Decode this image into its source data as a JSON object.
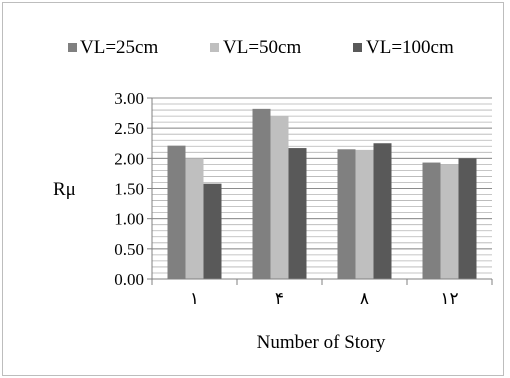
{
  "chart_data": {
    "type": "bar",
    "categories": [
      "١",
      "۴",
      "٨",
      "١٢"
    ],
    "series": [
      {
        "name": "VL=25cm",
        "color": "#808080",
        "values": [
          2.21,
          2.82,
          2.15,
          1.93
        ]
      },
      {
        "name": "VL=50cm",
        "color": "#bfbfbf",
        "values": [
          2.0,
          2.7,
          2.14,
          1.9
        ]
      },
      {
        "name": "VL=100cm",
        "color": "#595959",
        "values": [
          1.58,
          2.17,
          2.25,
          2.0
        ]
      }
    ],
    "xlabel": "Number of Story",
    "ylabel": "Rμ",
    "ylim": [
      0,
      3
    ],
    "yticks": [
      "0.00",
      "0.50",
      "1.00",
      "1.50",
      "2.00",
      "2.50",
      "3.00"
    ],
    "minor_grid_step": 0.1,
    "grid": true,
    "legend_position": "top"
  }
}
